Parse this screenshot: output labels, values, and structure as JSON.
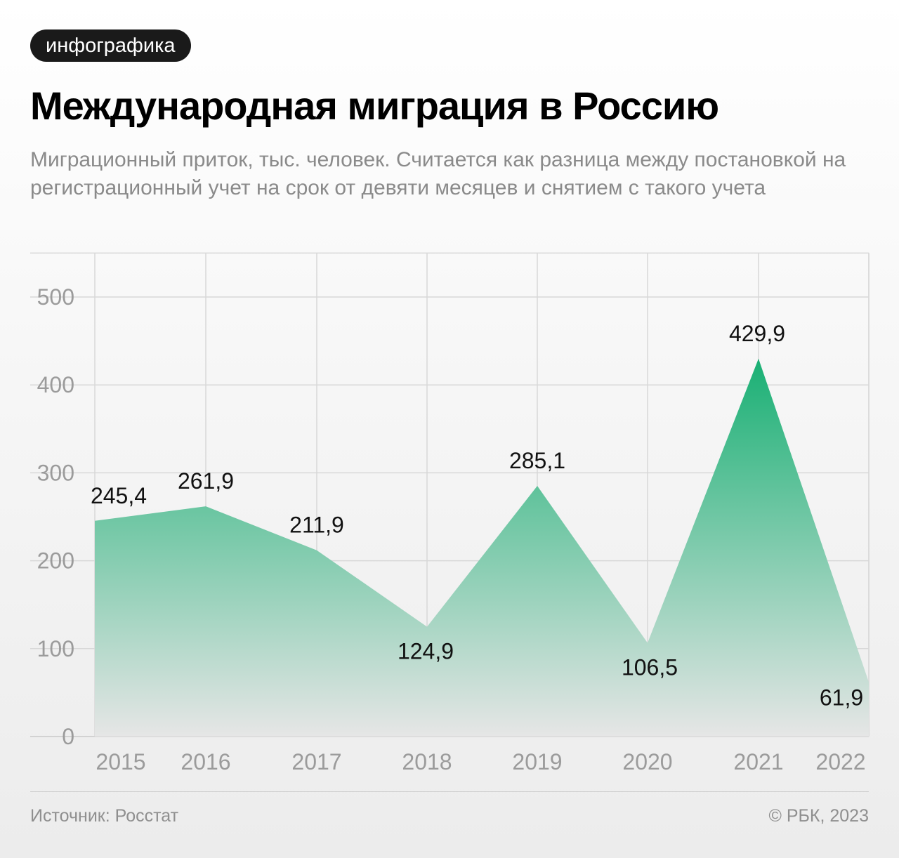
{
  "badge": "инфографика",
  "title": "Международная миграция в Россию",
  "subtitle": "Миграционный приток, тыс. человек. Считается как разница между постановкой на регистрационный учет на срок от девяти месяцев и снятием с такого учета",
  "footer": {
    "source": "Источник: Росстат",
    "copyright": "© РБК, 2023"
  },
  "colors": {
    "accent": "#1bad73",
    "area_top": "#19b074",
    "area_bottom": "#e6e6e6"
  },
  "chart_data": {
    "type": "area",
    "x": [
      "2015",
      "2016",
      "2017",
      "2018",
      "2019",
      "2020",
      "2021",
      "2022"
    ],
    "values": [
      245.4,
      261.9,
      211.9,
      124.9,
      285.1,
      106.5,
      429.9,
      61.9
    ],
    "value_labels": [
      "245,4",
      "261,9",
      "211,9",
      "124,9",
      "285,1",
      "106,5",
      "429,9",
      "61,9"
    ],
    "yticks": [
      0,
      100,
      200,
      300,
      400,
      500
    ],
    "ylim": [
      0,
      550
    ],
    "grid": true
  }
}
